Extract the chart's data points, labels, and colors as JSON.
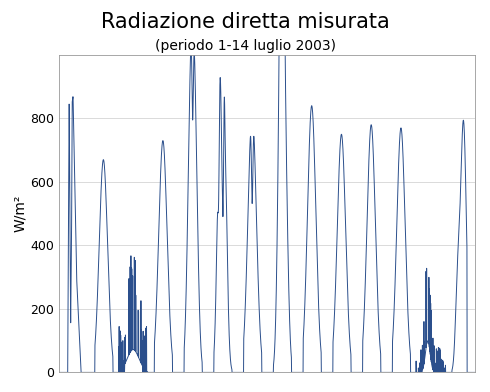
{
  "title": "Radiazione diretta misurata",
  "subtitle": "(periodo 1-14 luglio 2003)",
  "ylabel": "W/m²",
  "line_color": "#2b4f8c",
  "background_color": "#ffffff",
  "ylim": [
    0,
    1000
  ],
  "yticks": [
    0,
    200,
    400,
    600,
    800
  ],
  "grid_color": "#cccccc",
  "title_fontsize": 15,
  "subtitle_fontsize": 10,
  "ylabel_fontsize": 10,
  "line_width": 0.7,
  "days": 14
}
